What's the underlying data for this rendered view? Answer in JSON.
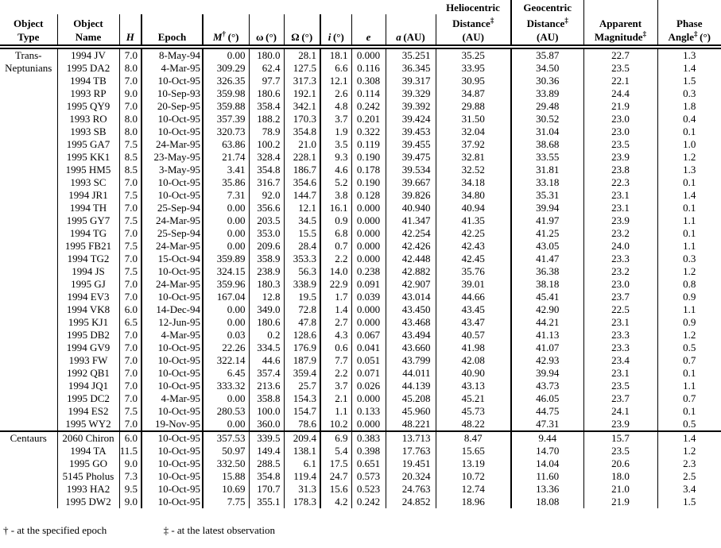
{
  "table": {
    "headers": {
      "object_type": {
        "l1": "Object",
        "l2": "Type"
      },
      "object_name": {
        "l1": "Object",
        "l2": "Name"
      },
      "h": "H",
      "epoch": "Epoch",
      "m_sym": "M",
      "omega_lower": "ω",
      "omega_upper": "Ω",
      "i_sym": "i",
      "e_sym": "e",
      "a_sym": "a",
      "deg_unit": "(°)",
      "au_unit": "(AU)",
      "dagger": "†",
      "ddagger": "‡",
      "heliocentric": {
        "l1": "Heliocentric",
        "l2": "Distance",
        "l3": "(AU)"
      },
      "geocentric": {
        "l1": "Geocentric",
        "l2": "Distance",
        "l3": "(AU)"
      },
      "apparent": {
        "l1": "Apparent",
        "l2": "Magnitude"
      },
      "phase": {
        "l1": "Phase",
        "l2": "Angle"
      }
    },
    "sections": [
      {
        "label_lines": [
          "Trans-",
          "Neptunians"
        ],
        "rows": [
          [
            "1994 JV",
            "7.0",
            "8-May-94",
            "0.00",
            "180.0",
            "28.1",
            "18.1",
            "0.000",
            "35.251",
            "35.25",
            "35.87",
            "22.7",
            "1.3"
          ],
          [
            "1995 DA2",
            "8.0",
            "4-Mar-95",
            "309.29",
            "62.4",
            "127.5",
            "6.6",
            "0.116",
            "36.345",
            "33.95",
            "34.50",
            "23.5",
            "1.4"
          ],
          [
            "1994 TB",
            "7.0",
            "10-Oct-95",
            "326.35",
            "97.7",
            "317.3",
            "12.1",
            "0.308",
            "39.317",
            "30.95",
            "30.36",
            "22.1",
            "1.5"
          ],
          [
            "1993 RP",
            "9.0",
            "10-Sep-93",
            "359.98",
            "180.6",
            "192.1",
            "2.6",
            "0.114",
            "39.329",
            "34.87",
            "33.89",
            "24.4",
            "0.3"
          ],
          [
            "1995 QY9",
            "7.0",
            "20-Sep-95",
            "359.88",
            "358.4",
            "342.1",
            "4.8",
            "0.242",
            "39.392",
            "29.88",
            "29.48",
            "21.9",
            "1.8"
          ],
          [
            "1993 RO",
            "8.0",
            "10-Oct-95",
            "357.39",
            "188.2",
            "170.3",
            "3.7",
            "0.201",
            "39.424",
            "31.50",
            "30.52",
            "23.0",
            "0.4"
          ],
          [
            "1993 SB",
            "8.0",
            "10-Oct-95",
            "320.73",
            "78.9",
            "354.8",
            "1.9",
            "0.322",
            "39.453",
            "32.04",
            "31.04",
            "23.0",
            "0.1"
          ],
          [
            "1995 GA7",
            "7.5",
            "24-Mar-95",
            "63.86",
            "100.2",
            "21.0",
            "3.5",
            "0.119",
            "39.455",
            "37.92",
            "38.68",
            "23.5",
            "1.0"
          ],
          [
            "1995 KK1",
            "8.5",
            "23-May-95",
            "21.74",
            "328.4",
            "228.1",
            "9.3",
            "0.190",
            "39.475",
            "32.81",
            "33.55",
            "23.9",
            "1.2"
          ],
          [
            "1995 HM5",
            "8.5",
            "3-May-95",
            "3.41",
            "354.8",
            "186.7",
            "4.6",
            "0.178",
            "39.534",
            "32.52",
            "31.81",
            "23.8",
            "1.3"
          ],
          [
            "1993 SC",
            "7.0",
            "10-Oct-95",
            "35.86",
            "316.7",
            "354.6",
            "5.2",
            "0.190",
            "39.667",
            "34.18",
            "33.18",
            "22.3",
            "0.1"
          ],
          [
            "1994 JR1",
            "7.5",
            "10-Oct-95",
            "7.31",
            "92.0",
            "144.7",
            "3.8",
            "0.128",
            "39.826",
            "34.80",
            "35.31",
            "23.1",
            "1.4"
          ],
          [
            "1994 TH",
            "7.0",
            "25-Sep-94",
            "0.00",
            "356.6",
            "12.1",
            "16.1",
            "0.000",
            "40.940",
            "40.94",
            "39.94",
            "23.1",
            "0.1"
          ],
          [
            "1995 GY7",
            "7.5",
            "24-Mar-95",
            "0.00",
            "203.5",
            "34.5",
            "0.9",
            "0.000",
            "41.347",
            "41.35",
            "41.97",
            "23.9",
            "1.1"
          ],
          [
            "1994 TG",
            "7.0",
            "25-Sep-94",
            "0.00",
            "353.0",
            "15.5",
            "6.8",
            "0.000",
            "42.254",
            "42.25",
            "41.25",
            "23.2",
            "0.1"
          ],
          [
            "1995 FB21",
            "7.5",
            "24-Mar-95",
            "0.00",
            "209.6",
            "28.4",
            "0.7",
            "0.000",
            "42.426",
            "42.43",
            "43.05",
            "24.0",
            "1.1"
          ],
          [
            "1994 TG2",
            "7.0",
            "15-Oct-94",
            "359.89",
            "358.9",
            "353.3",
            "2.2",
            "0.000",
            "42.448",
            "42.45",
            "41.47",
            "23.3",
            "0.3"
          ],
          [
            "1994 JS",
            "7.5",
            "10-Oct-95",
            "324.15",
            "238.9",
            "56.3",
            "14.0",
            "0.238",
            "42.882",
            "35.76",
            "36.38",
            "23.2",
            "1.2"
          ],
          [
            "1995 GJ",
            "7.0",
            "24-Mar-95",
            "359.96",
            "180.3",
            "338.9",
            "22.9",
            "0.091",
            "42.907",
            "39.01",
            "38.18",
            "23.0",
            "0.8"
          ],
          [
            "1994 EV3",
            "7.0",
            "10-Oct-95",
            "167.04",
            "12.8",
            "19.5",
            "1.7",
            "0.039",
            "43.014",
            "44.66",
            "45.41",
            "23.7",
            "0.9"
          ],
          [
            "1994 VK8",
            "6.0",
            "14-Dec-94",
            "0.00",
            "349.0",
            "72.8",
            "1.4",
            "0.000",
            "43.450",
            "43.45",
            "42.90",
            "22.5",
            "1.1"
          ],
          [
            "1995 KJ1",
            "6.5",
            "12-Jun-95",
            "0.00",
            "180.6",
            "47.8",
            "2.7",
            "0.000",
            "43.468",
            "43.47",
            "44.21",
            "23.1",
            "0.9"
          ],
          [
            "1995 DB2",
            "7.0",
            "4-Mar-95",
            "0.03",
            "0.2",
            "128.6",
            "4.3",
            "0.067",
            "43.494",
            "40.57",
            "41.13",
            "23.3",
            "1.2"
          ],
          [
            "1994 GV9",
            "7.0",
            "10-Oct-95",
            "22.26",
            "334.5",
            "176.9",
            "0.6",
            "0.041",
            "43.660",
            "41.98",
            "41.07",
            "23.3",
            "0.5"
          ],
          [
            "1993 FW",
            "7.0",
            "10-Oct-95",
            "322.14",
            "44.6",
            "187.9",
            "7.7",
            "0.051",
            "43.799",
            "42.08",
            "42.93",
            "23.4",
            "0.7"
          ],
          [
            "1992 QB1",
            "7.0",
            "10-Oct-95",
            "6.45",
            "357.4",
            "359.4",
            "2.2",
            "0.071",
            "44.011",
            "40.90",
            "39.94",
            "23.1",
            "0.1"
          ],
          [
            "1994 JQ1",
            "7.0",
            "10-Oct-95",
            "333.32",
            "213.6",
            "25.7",
            "3.7",
            "0.026",
            "44.139",
            "43.13",
            "43.73",
            "23.5",
            "1.1"
          ],
          [
            "1995 DC2",
            "7.0",
            "4-Mar-95",
            "0.00",
            "358.8",
            "154.3",
            "2.1",
            "0.000",
            "45.208",
            "45.21",
            "46.05",
            "23.7",
            "0.7"
          ],
          [
            "1994 ES2",
            "7.5",
            "10-Oct-95",
            "280.53",
            "100.0",
            "154.7",
            "1.1",
            "0.133",
            "45.960",
            "45.73",
            "44.75",
            "24.1",
            "0.1"
          ],
          [
            "1995 WY2",
            "7.0",
            "19-Nov-95",
            "0.00",
            "360.0",
            "78.6",
            "10.2",
            "0.000",
            "48.221",
            "48.22",
            "47.31",
            "23.9",
            "0.5"
          ]
        ]
      },
      {
        "label_lines": [
          "Centaurs"
        ],
        "rows": [
          [
            "2060 Chiron",
            "6.0",
            "10-Oct-95",
            "357.53",
            "339.5",
            "209.4",
            "6.9",
            "0.383",
            "13.713",
            "8.47",
            "9.44",
            "15.7",
            "1.4"
          ],
          [
            "1994 TA",
            "11.5",
            "10-Oct-95",
            "50.97",
            "149.4",
            "138.1",
            "5.4",
            "0.398",
            "17.763",
            "15.65",
            "14.70",
            "23.5",
            "1.2"
          ],
          [
            "1995 GO",
            "9.0",
            "10-Oct-95",
            "332.50",
            "288.5",
            "6.1",
            "17.5",
            "0.651",
            "19.451",
            "13.19",
            "14.04",
            "20.6",
            "2.3"
          ],
          [
            "5145 Pholus",
            "7.3",
            "10-Oct-95",
            "15.88",
            "354.8",
            "119.4",
            "24.7",
            "0.573",
            "20.324",
            "10.72",
            "11.60",
            "18.0",
            "2.5"
          ],
          [
            "1993 HA2",
            "9.5",
            "10-Oct-95",
            "10.69",
            "170.7",
            "31.3",
            "15.6",
            "0.523",
            "24.763",
            "12.74",
            "13.36",
            "21.0",
            "3.4"
          ],
          [
            "1995 DW2",
            "9.0",
            "10-Oct-95",
            "7.75",
            "355.1",
            "178.3",
            "4.2",
            "0.242",
            "24.852",
            "18.96",
            "18.08",
            "21.9",
            "1.5"
          ]
        ]
      }
    ]
  },
  "footnotes": {
    "left": "† - at the specified epoch",
    "right": "‡ - at the latest observation"
  }
}
